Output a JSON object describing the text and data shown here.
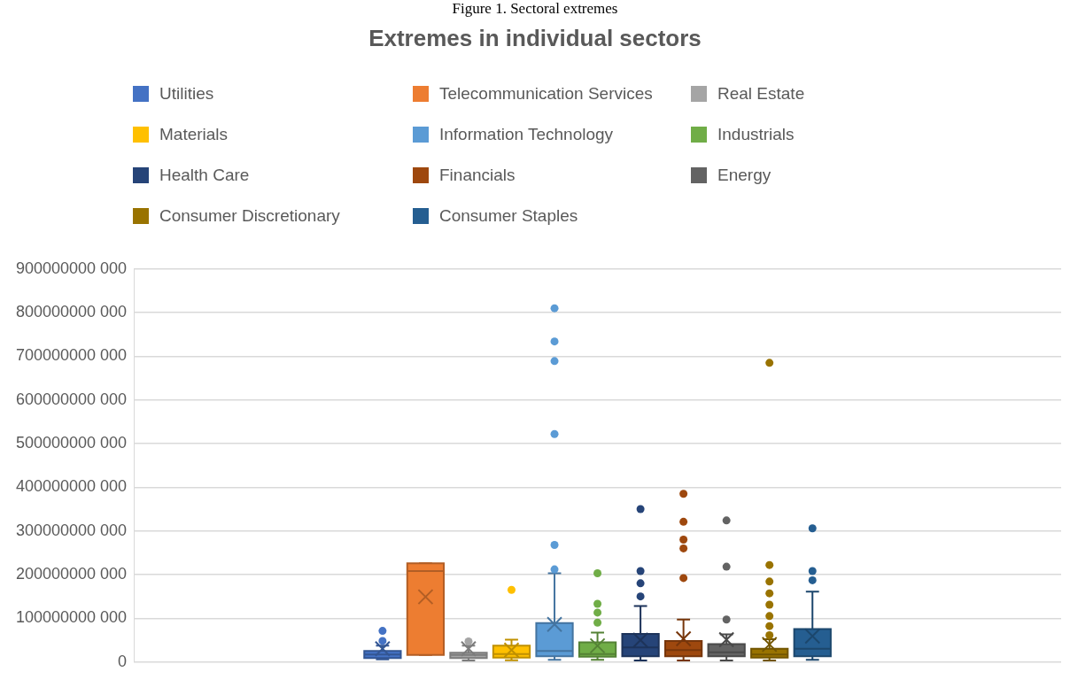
{
  "chart_data": {
    "type": "box",
    "title": "Extremes in individual sectors",
    "annotations": [
      "Figure 1. Sectoral extremes"
    ],
    "categories": [
      null
    ],
    "ylim": [
      0,
      900000000000
    ],
    "yticks": [
      {
        "value": 0,
        "label": "0"
      },
      {
        "value": 100000000000,
        "label": "100000000 000"
      },
      {
        "value": 200000000000,
        "label": "200000000 000"
      },
      {
        "value": 300000000000,
        "label": "300000000 000"
      },
      {
        "value": 400000000000,
        "label": "400000000 000"
      },
      {
        "value": 500000000000,
        "label": "500000000 000"
      },
      {
        "value": 600000000000,
        "label": "600000000 000"
      },
      {
        "value": 700000000000,
        "label": "700000000 000"
      },
      {
        "value": 800000000000,
        "label": "800000000 000"
      },
      {
        "value": 900000000000,
        "label": "900000000 000"
      }
    ],
    "grid": "y",
    "legend": "top",
    "marker": "circle",
    "series": [
      {
        "name": "Utilities",
        "color": "#4472c4",
        "boxes": [
          {
            "low": 6000000000,
            "q1": 9000000000,
            "median": 17000000000,
            "q3": 25000000000,
            "high": 37000000000,
            "mean": 30000000000,
            "outliers": [
              48000000000,
              71000000000
            ]
          }
        ]
      },
      {
        "name": "Telecommunication Services",
        "color": "#ed7d31",
        "boxes": [
          {
            "low": 16000000000,
            "q1": 16000000000,
            "median": 208000000000,
            "q3": 226000000000,
            "high": 226000000000,
            "mean": 149000000000
          }
        ]
      },
      {
        "name": "Real Estate",
        "color": "#a5a5a5",
        "boxes": [
          {
            "low": 3000000000,
            "q1": 9000000000,
            "median": 16000000000,
            "q3": 21000000000,
            "high": 37000000000,
            "mean": 30000000000,
            "outliers": [
              47000000000
            ]
          }
        ]
      },
      {
        "name": "Materials",
        "color": "#ffc000",
        "boxes": [
          {
            "low": 4000000000,
            "q1": 10000000000,
            "median": 18000000000,
            "q3": 37000000000,
            "high": 51000000000,
            "mean": 27000000000,
            "outliers": [
              165000000000
            ]
          }
        ]
      },
      {
        "name": "Information Technology",
        "color": "#5b9bd5",
        "boxes": [
          {
            "low": 5000000000,
            "q1": 13000000000,
            "median": 25000000000,
            "q3": 89000000000,
            "high": 203000000000,
            "mean": 86000000000,
            "outliers": [
              212000000000,
              268000000000,
              522000000000,
              689000000000,
              734000000000,
              810000000000
            ]
          }
        ]
      },
      {
        "name": "Industrials",
        "color": "#70ad47",
        "boxes": [
          {
            "low": 5000000000,
            "q1": 12000000000,
            "median": 18000000000,
            "q3": 45000000000,
            "high": 67000000000,
            "mean": 37000000000,
            "outliers": [
              90000000000,
              113000000000,
              133000000000,
              203000000000
            ]
          }
        ]
      },
      {
        "name": "Health Care",
        "color": "#264478",
        "boxes": [
          {
            "low": 3000000000,
            "q1": 13000000000,
            "median": 33000000000,
            "q3": 64000000000,
            "high": 128000000000,
            "mean": 50000000000,
            "outliers": [
              150000000000,
              180000000000,
              208000000000,
              350000000000
            ]
          }
        ]
      },
      {
        "name": "Financials",
        "color": "#9e480e",
        "boxes": [
          {
            "low": 3000000000,
            "q1": 13000000000,
            "median": 27000000000,
            "q3": 48000000000,
            "high": 97000000000,
            "mean": 53000000000,
            "outliers": [
              192000000000,
              260000000000,
              280000000000,
              321000000000,
              385000000000
            ]
          }
        ]
      },
      {
        "name": "Energy",
        "color": "#636363",
        "boxes": [
          {
            "low": 3000000000,
            "q1": 13000000000,
            "median": 22000000000,
            "q3": 41000000000,
            "high": 63000000000,
            "mean": 51000000000,
            "outliers": [
              97000000000,
              218000000000,
              324000000000
            ]
          }
        ]
      },
      {
        "name": "Consumer Discretionary",
        "color": "#997300",
        "boxes": [
          {
            "low": 3000000000,
            "q1": 10000000000,
            "median": 17000000000,
            "q3": 30000000000,
            "high": 52000000000,
            "mean": 40000000000,
            "outliers": [
              61000000000,
              82000000000,
              105000000000,
              131000000000,
              157000000000,
              184000000000,
              222000000000,
              685000000000
            ]
          }
        ]
      },
      {
        "name": "Consumer Staples",
        "color": "#255e91",
        "boxes": [
          {
            "low": 5000000000,
            "q1": 13000000000,
            "median": 30000000000,
            "q3": 75000000000,
            "high": 161000000000,
            "mean": 59000000000,
            "outliers": [
              187000000000,
              208000000000,
              306000000000
            ]
          }
        ]
      }
    ]
  }
}
